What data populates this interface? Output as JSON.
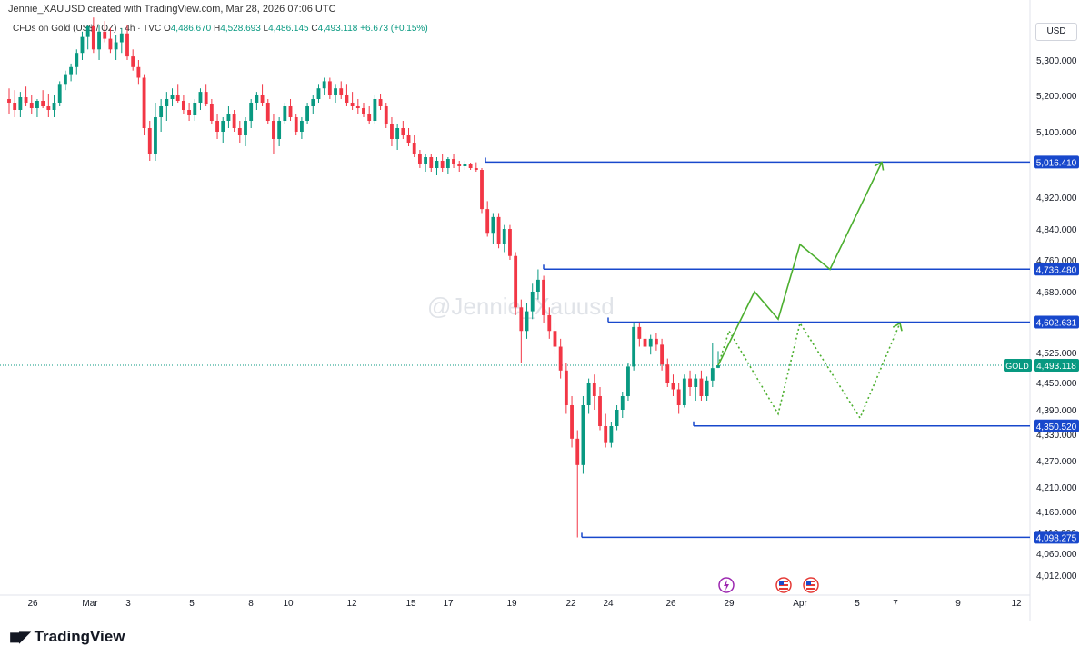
{
  "credit_text": "Jennie_XAUUSD created with TradingView.com, Mar 28, 2026 07:06 UTC",
  "legend": {
    "symbol": "CFDs on Gold (US$ / OZ) · 4h · TVC",
    "open_label": "O",
    "open": "4,486.670",
    "high_label": "H",
    "high": "4,528.693",
    "low_label": "L",
    "low": "4,486.145",
    "close_label": "C",
    "close": "4,493.118",
    "change": "+6.673 (+0.15%)"
  },
  "currency": "USD",
  "watermark": "@Jennie_Xauusd",
  "brand": "TradingView",
  "colors": {
    "bull": "#089981",
    "bear": "#f23645",
    "level": "#1848cc",
    "projection": "#4caf2f",
    "price_line": "#089981"
  },
  "chart_data": {
    "type": "candlestick",
    "symbol": "GOLD",
    "timeframe": "4h",
    "y_axis": {
      "ticks": [
        "5,300.000",
        "5,200.000",
        "5,100.000",
        "4,920.000",
        "4,840.000",
        "4,760.000",
        "4,680.000",
        "4,525.000",
        "4,450.000",
        "4,390.000",
        "4,330.000",
        "4,270.000",
        "4,210.000",
        "4,160.000",
        "4,110.000",
        "4,060.000",
        "4,012.000"
      ],
      "tick_values": [
        5300,
        5200,
        5100,
        4920,
        4840,
        4760,
        4680,
        4525,
        4450,
        4390,
        4330,
        4270,
        4210,
        4160,
        4110,
        4060,
        4012
      ]
    },
    "x_axis": {
      "ticks": [
        "26",
        "Mar",
        "3",
        "5",
        "8",
        "10",
        "12",
        "15",
        "17",
        "19",
        "22",
        "24",
        "26",
        "29",
        "Apr",
        "5",
        "7",
        "9",
        "12"
      ]
    },
    "current_price": {
      "label": "GOLD",
      "value": "4,493.118",
      "price": 4493.118
    },
    "levels": [
      {
        "label": "5,016.410",
        "price": 5016.41,
        "start": "Mar 18"
      },
      {
        "label": "4,736.480",
        "price": 4736.48,
        "start": "Mar 20"
      },
      {
        "label": "4,602.631",
        "price": 4602.631,
        "start": "Mar 24"
      },
      {
        "label": "4,350.520",
        "price": 4350.52,
        "start": "Mar 27"
      },
      {
        "label": "4,098.275",
        "price": 4098.275,
        "start": "Mar 23"
      }
    ],
    "candles": [
      [
        5190,
        5220,
        5150,
        5180
      ],
      [
        5180,
        5215,
        5140,
        5160
      ],
      [
        5160,
        5210,
        5140,
        5195
      ],
      [
        5195,
        5225,
        5170,
        5180
      ],
      [
        5180,
        5200,
        5150,
        5165
      ],
      [
        5165,
        5190,
        5140,
        5185
      ],
      [
        5185,
        5215,
        5165,
        5170
      ],
      [
        5170,
        5205,
        5140,
        5160
      ],
      [
        5160,
        5200,
        5140,
        5180
      ],
      [
        5180,
        5240,
        5170,
        5230
      ],
      [
        5230,
        5270,
        5215,
        5260
      ],
      [
        5260,
        5290,
        5240,
        5280
      ],
      [
        5280,
        5330,
        5260,
        5320
      ],
      [
        5320,
        5380,
        5300,
        5365
      ],
      [
        5365,
        5400,
        5330,
        5395
      ],
      [
        5395,
        5420,
        5320,
        5330
      ],
      [
        5330,
        5400,
        5300,
        5380
      ],
      [
        5380,
        5410,
        5350,
        5360
      ],
      [
        5360,
        5390,
        5320,
        5330
      ],
      [
        5330,
        5370,
        5300,
        5350
      ],
      [
        5350,
        5390,
        5320,
        5375
      ],
      [
        5375,
        5400,
        5300,
        5310
      ],
      [
        5310,
        5330,
        5270,
        5280
      ],
      [
        5280,
        5300,
        5230,
        5250
      ],
      [
        5250,
        5260,
        5090,
        5110
      ],
      [
        5110,
        5130,
        5020,
        5040
      ],
      [
        5040,
        5180,
        5020,
        5140
      ],
      [
        5140,
        5190,
        5100,
        5170
      ],
      [
        5170,
        5210,
        5130,
        5190
      ],
      [
        5190,
        5220,
        5170,
        5200
      ],
      [
        5200,
        5230,
        5180,
        5185
      ],
      [
        5185,
        5200,
        5150,
        5160
      ],
      [
        5160,
        5180,
        5130,
        5145
      ],
      [
        5145,
        5190,
        5130,
        5180
      ],
      [
        5180,
        5220,
        5160,
        5210
      ],
      [
        5210,
        5230,
        5170,
        5175
      ],
      [
        5175,
        5190,
        5120,
        5130
      ],
      [
        5130,
        5150,
        5080,
        5100
      ],
      [
        5100,
        5140,
        5070,
        5130
      ],
      [
        5130,
        5170,
        5110,
        5150
      ],
      [
        5150,
        5160,
        5100,
        5110
      ],
      [
        5110,
        5130,
        5070,
        5090
      ],
      [
        5090,
        5140,
        5060,
        5130
      ],
      [
        5130,
        5190,
        5110,
        5180
      ],
      [
        5180,
        5210,
        5160,
        5200
      ],
      [
        5200,
        5230,
        5170,
        5180
      ],
      [
        5180,
        5190,
        5120,
        5130
      ],
      [
        5130,
        5150,
        5040,
        5080
      ],
      [
        5080,
        5140,
        5060,
        5130
      ],
      [
        5130,
        5180,
        5120,
        5170
      ],
      [
        5170,
        5190,
        5130,
        5140
      ],
      [
        5140,
        5150,
        5090,
        5100
      ],
      [
        5100,
        5140,
        5080,
        5130
      ],
      [
        5130,
        5180,
        5120,
        5170
      ],
      [
        5170,
        5200,
        5150,
        5190
      ],
      [
        5190,
        5230,
        5180,
        5220
      ],
      [
        5220,
        5250,
        5200,
        5240
      ],
      [
        5240,
        5250,
        5190,
        5200
      ],
      [
        5200,
        5230,
        5180,
        5220
      ],
      [
        5220,
        5240,
        5190,
        5200
      ],
      [
        5200,
        5230,
        5170,
        5180
      ],
      [
        5180,
        5210,
        5160,
        5170
      ],
      [
        5170,
        5190,
        5150,
        5165
      ],
      [
        5165,
        5180,
        5140,
        5150
      ],
      [
        5150,
        5170,
        5120,
        5130
      ],
      [
        5130,
        5200,
        5120,
        5190
      ],
      [
        5190,
        5205,
        5160,
        5170
      ],
      [
        5170,
        5180,
        5110,
        5120
      ],
      [
        5120,
        5140,
        5060,
        5080
      ],
      [
        5080,
        5120,
        5050,
        5110
      ],
      [
        5110,
        5130,
        5080,
        5090
      ],
      [
        5090,
        5110,
        5060,
        5070
      ],
      [
        5070,
        5090,
        5030,
        5040
      ],
      [
        5040,
        5050,
        5000,
        5010
      ],
      [
        5010,
        5040,
        4990,
        5030
      ],
      [
        5030,
        5040,
        4990,
        5000
      ],
      [
        5000,
        5030,
        4980,
        5020
      ],
      [
        5020,
        5040,
        4990,
        5000
      ],
      [
        5000,
        5030,
        4985,
        5025
      ],
      [
        5025,
        5040,
        5000,
        5010
      ],
      [
        5010,
        5020,
        4990,
        5005
      ],
      [
        5005,
        5020,
        4995,
        5010
      ],
      [
        5010,
        5015,
        4995,
        5000
      ],
      [
        5000,
        5016,
        4990,
        4995
      ],
      [
        4995,
        5000,
        4880,
        4890
      ],
      [
        4890,
        4910,
        4820,
        4830
      ],
      [
        4830,
        4880,
        4800,
        4870
      ],
      [
        4870,
        4880,
        4790,
        4800
      ],
      [
        4800,
        4850,
        4780,
        4840
      ],
      [
        4840,
        4850,
        4760,
        4770
      ],
      [
        4770,
        4780,
        4620,
        4640
      ],
      [
        4640,
        4660,
        4500,
        4580
      ],
      [
        4580,
        4650,
        4560,
        4630
      ],
      [
        4630,
        4700,
        4610,
        4680
      ],
      [
        4680,
        4736,
        4660,
        4710
      ],
      [
        4710,
        4720,
        4600,
        4620
      ],
      [
        4620,
        4640,
        4560,
        4580
      ],
      [
        4580,
        4600,
        4520,
        4540
      ],
      [
        4540,
        4560,
        4460,
        4480
      ],
      [
        4480,
        4500,
        4380,
        4400
      ],
      [
        4400,
        4420,
        4300,
        4320
      ],
      [
        4320,
        4340,
        4098,
        4260
      ],
      [
        4260,
        4420,
        4240,
        4400
      ],
      [
        4400,
        4460,
        4380,
        4450
      ],
      [
        4450,
        4470,
        4390,
        4420
      ],
      [
        4420,
        4440,
        4340,
        4350
      ],
      [
        4350,
        4380,
        4300,
        4310
      ],
      [
        4310,
        4360,
        4300,
        4350
      ],
      [
        4350,
        4400,
        4340,
        4390
      ],
      [
        4390,
        4430,
        4370,
        4420
      ],
      [
        4420,
        4500,
        4410,
        4490
      ],
      [
        4490,
        4600,
        4480,
        4590
      ],
      [
        4590,
        4602,
        4540,
        4560
      ],
      [
        4560,
        4580,
        4530,
        4540
      ],
      [
        4540,
        4570,
        4520,
        4560
      ],
      [
        4560,
        4575,
        4530,
        4545
      ],
      [
        4545,
        4560,
        4480,
        4495
      ],
      [
        4495,
        4510,
        4440,
        4450
      ],
      [
        4450,
        4470,
        4420,
        4435
      ],
      [
        4435,
        4450,
        4380,
        4400
      ],
      [
        4400,
        4470,
        4395,
        4460
      ],
      [
        4460,
        4480,
        4420,
        4440
      ],
      [
        4440,
        4470,
        4410,
        4460
      ],
      [
        4460,
        4480,
        4410,
        4420
      ],
      [
        4420,
        4465,
        4410,
        4455
      ],
      [
        4455,
        4550,
        4440,
        4486
      ],
      [
        4486.67,
        4528.69,
        4486.15,
        4493.12
      ]
    ],
    "projections": [
      {
        "style": "solid",
        "points": [
          [
            "Mar 28",
            4493
          ],
          [
            "Mar 30",
            4680
          ],
          [
            "Mar 31",
            4610
          ],
          [
            "Apr 1",
            4800
          ],
          [
            "Apr 2",
            4736
          ],
          [
            "Apr 4",
            5016
          ]
        ]
      },
      {
        "style": "dotted",
        "points": [
          [
            "Mar 28",
            4493
          ],
          [
            "Mar 29",
            4580
          ],
          [
            "Mar 31",
            4380
          ],
          [
            "Apr 1",
            4600
          ],
          [
            "Apr 3",
            4370
          ],
          [
            "Apr 5",
            4600
          ]
        ]
      }
    ],
    "event_icons": [
      "lightning-icon",
      "us-flag-icon",
      "us-flag-icon"
    ]
  }
}
